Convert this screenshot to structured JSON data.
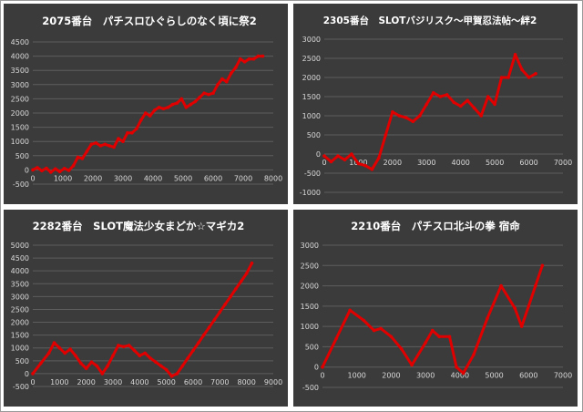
{
  "chart_data": [
    {
      "type": "line",
      "title": "2075番台　パチスロひぐらしのなく頃に祭2",
      "xlabel": "",
      "ylabel": "",
      "xlim": [
        0,
        8000
      ],
      "ylim": [
        -500,
        4500
      ],
      "xticks": [
        0,
        1000,
        2000,
        3000,
        4000,
        5000,
        6000,
        7000,
        8000
      ],
      "yticks": [
        -500,
        0,
        500,
        1000,
        1500,
        2000,
        2500,
        3000,
        3500,
        4000,
        4500
      ],
      "grid": "horizontal",
      "line_color": "#e00000",
      "series": [
        {
          "x": [
            0,
            150,
            300,
            450,
            600,
            750,
            900,
            1050,
            1200,
            1350,
            1500,
            1650,
            1800,
            1950,
            2100,
            2250,
            2400,
            2550,
            2700,
            2850,
            3000,
            3150,
            3300,
            3450,
            3600,
            3750,
            3900,
            4050,
            4200,
            4350,
            4500,
            4650,
            4800,
            4950,
            5100,
            5250,
            5400,
            5550,
            5700,
            5850,
            6000,
            6150,
            6300,
            6450,
            6600,
            6750,
            6900,
            7050,
            7200,
            7350,
            7500,
            7650
          ],
          "y": [
            0,
            80,
            -30,
            60,
            -80,
            40,
            -60,
            50,
            -20,
            150,
            450,
            400,
            650,
            900,
            950,
            850,
            900,
            850,
            800,
            1100,
            1000,
            1300,
            1300,
            1450,
            1750,
            2000,
            1900,
            2100,
            2200,
            2150,
            2200,
            2300,
            2350,
            2500,
            2200,
            2300,
            2400,
            2550,
            2700,
            2650,
            2700,
            3000,
            3200,
            3100,
            3400,
            3600,
            3900,
            3800,
            3900,
            3900,
            4000,
            4000
          ]
        }
      ]
    },
    {
      "type": "line",
      "title": "2305番台　SLOTバジリスク～甲賀忍法帖～絆2",
      "xlabel": "",
      "ylabel": "",
      "xlim": [
        0,
        7000
      ],
      "ylim": [
        -1000,
        3000
      ],
      "xticks": [
        0,
        1000,
        2000,
        3000,
        4000,
        5000,
        6000,
        7000
      ],
      "yticks": [
        -1000,
        -500,
        0,
        500,
        1000,
        1500,
        2000,
        2500,
        3000
      ],
      "grid": "horizontal",
      "line_color": "#e00000",
      "series": [
        {
          "x": [
            0,
            200,
            400,
            600,
            800,
            1000,
            1200,
            1400,
            1600,
            1800,
            2000,
            2200,
            2400,
            2600,
            2800,
            3000,
            3200,
            3400,
            3600,
            3800,
            4000,
            4200,
            4400,
            4600,
            4800,
            5000,
            5200,
            5400,
            5600,
            5800,
            6000,
            6200
          ],
          "y": [
            -50,
            -200,
            -50,
            -150,
            0,
            -250,
            -300,
            -400,
            -100,
            500,
            1100,
            1000,
            950,
            850,
            1000,
            1300,
            1600,
            1500,
            1550,
            1350,
            1250,
            1400,
            1200,
            1000,
            1500,
            1300,
            2000,
            2000,
            2600,
            2200,
            2000,
            2100
          ]
        }
      ]
    },
    {
      "type": "line",
      "title": "2282番台　SLOT魔法少女まどか☆マギカ2",
      "xlabel": "",
      "ylabel": "",
      "xlim": [
        0,
        9000
      ],
      "ylim": [
        -500,
        5000
      ],
      "xticks": [
        0,
        1000,
        2000,
        3000,
        4000,
        5000,
        6000,
        7000,
        8000,
        9000
      ],
      "yticks": [
        -500,
        0,
        500,
        1000,
        1500,
        2000,
        2500,
        3000,
        3500,
        4000,
        4500,
        5000
      ],
      "grid": "horizontal",
      "line_color": "#e00000",
      "series": [
        {
          "x": [
            0,
            300,
            600,
            800,
            1000,
            1200,
            1400,
            1600,
            1800,
            2000,
            2200,
            2400,
            2600,
            2800,
            3000,
            3200,
            3400,
            3600,
            3800,
            4000,
            4200,
            4400,
            4600,
            4800,
            5000,
            5200,
            5400,
            5600,
            5800,
            6000,
            6200,
            6400,
            6600,
            6800,
            7000,
            7200,
            7400,
            7600,
            7800,
            8000,
            8200
          ],
          "y": [
            0,
            400,
            800,
            1200,
            1000,
            800,
            950,
            700,
            400,
            200,
            450,
            300,
            0,
            300,
            700,
            1100,
            1050,
            1100,
            900,
            700,
            800,
            600,
            450,
            300,
            150,
            -100,
            0,
            300,
            600,
            900,
            1200,
            1500,
            1800,
            2100,
            2400,
            2700,
            3000,
            3300,
            3600,
            3900,
            4300
          ]
        }
      ]
    },
    {
      "type": "line",
      "title": "2210番台　パチスロ北斗の拳 宿命",
      "xlabel": "",
      "ylabel": "",
      "xlim": [
        0,
        7000
      ],
      "ylim": [
        -500,
        3000
      ],
      "xticks": [
        0,
        1000,
        2000,
        3000,
        4000,
        5000,
        6000,
        7000
      ],
      "yticks": [
        -500,
        0,
        500,
        1000,
        1500,
        2000,
        2500,
        3000
      ],
      "grid": "horizontal",
      "line_color": "#e00000",
      "series": [
        {
          "x": [
            0,
            400,
            800,
            1200,
            1500,
            1700,
            2000,
            2300,
            2600,
            3000,
            3200,
            3400,
            3700,
            3900,
            4100,
            4400,
            4800,
            5200,
            5600,
            5800,
            6000,
            6200,
            6400
          ],
          "y": [
            0,
            700,
            1400,
            1150,
            900,
            950,
            750,
            450,
            50,
            600,
            900,
            750,
            750,
            0,
            -150,
            300,
            1200,
            2000,
            1450,
            1000,
            1500,
            2000,
            2500
          ]
        }
      ]
    }
  ]
}
